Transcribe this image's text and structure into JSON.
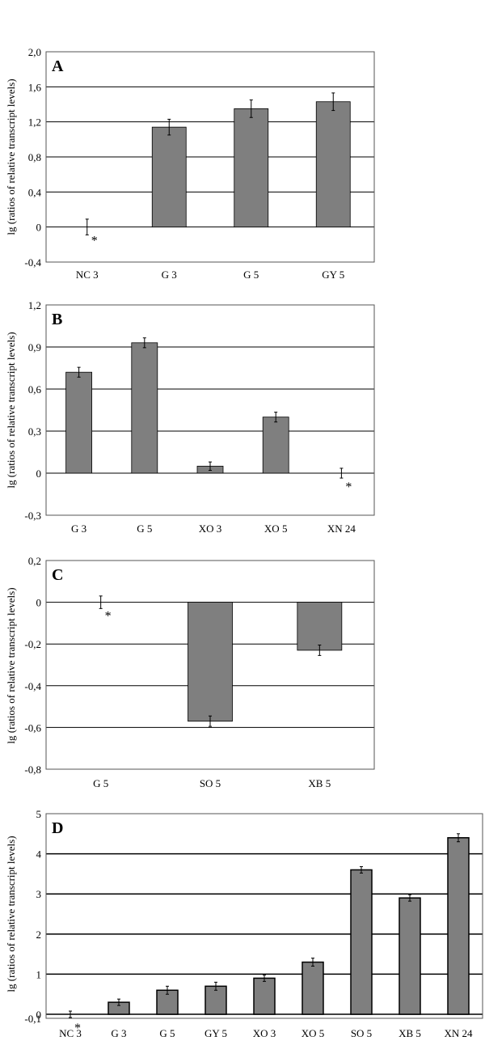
{
  "chart_data": [
    {
      "type": "bar",
      "panel": "A",
      "ylabel": "lg (ratios of relative transcript levels)",
      "ylim": [
        -0.4,
        2.0
      ],
      "yticks": [
        "2,0",
        "1,6",
        "1,2",
        "0,8",
        "0,4",
        "0",
        "-0,4"
      ],
      "categories": [
        "NC 3",
        "G 3",
        "G 5",
        "GY 5"
      ],
      "values": [
        0,
        1.14,
        1.35,
        1.43
      ],
      "errors": [
        0.09,
        0.09,
        0.1,
        0.1
      ],
      "annotations": [
        {
          "category": "NC 3",
          "text": "*"
        }
      ],
      "bar_color": "#7f7f7f",
      "grid": true
    },
    {
      "type": "bar",
      "panel": "B",
      "ylabel": "lg (ratios of relative transcript levels)",
      "ylim": [
        -0.3,
        1.2
      ],
      "yticks": [
        "1,2",
        "0,9",
        "0,6",
        "0,3",
        "0",
        "-0,3"
      ],
      "categories": [
        "G 3",
        "G 5",
        "XO 3",
        "XO 5",
        "XN 24"
      ],
      "values": [
        0.72,
        0.93,
        0.05,
        0.4,
        0
      ],
      "errors": [
        0.035,
        0.035,
        0.03,
        0.035,
        0.035
      ],
      "annotations": [
        {
          "category": "XN 24",
          "text": "*"
        }
      ],
      "bar_color": "#7f7f7f",
      "grid": true
    },
    {
      "type": "bar",
      "panel": "C",
      "ylabel": "lg (ratios of relative transcript levels)",
      "ylim": [
        -0.8,
        0.2
      ],
      "yticks": [
        "0,2",
        "0",
        "-0,2",
        "-0,4",
        "-0,6",
        "-0,8"
      ],
      "categories": [
        "G 5",
        "SO 5",
        "XB 5"
      ],
      "values": [
        0,
        -0.57,
        -0.23
      ],
      "errors": [
        0.03,
        0.025,
        0.025
      ],
      "annotations": [
        {
          "category": "G 5",
          "text": "*"
        }
      ],
      "bar_color": "#7f7f7f",
      "grid": true
    },
    {
      "type": "bar",
      "panel": "D",
      "ylabel": "lg (ratios of relative transcript levels)",
      "ylim": [
        -0.1,
        5
      ],
      "yticks": [
        "5",
        "4",
        "3",
        "2",
        "1",
        "0",
        "-0,1"
      ],
      "categories": [
        "NC 3",
        "G 3",
        "G 5",
        "GY 5",
        "XO 3",
        "XO 5",
        "SO 5",
        "XB 5",
        "XN 24"
      ],
      "values": [
        0,
        0.3,
        0.6,
        0.7,
        0.9,
        1.3,
        3.6,
        2.9,
        4.4
      ],
      "errors": [
        0.08,
        0.08,
        0.1,
        0.1,
        0.08,
        0.1,
        0.08,
        0.08,
        0.1
      ],
      "annotations": [
        {
          "category": "NC 3",
          "text": "*"
        }
      ],
      "bar_color": "#7f7f7f",
      "grid": true
    }
  ]
}
